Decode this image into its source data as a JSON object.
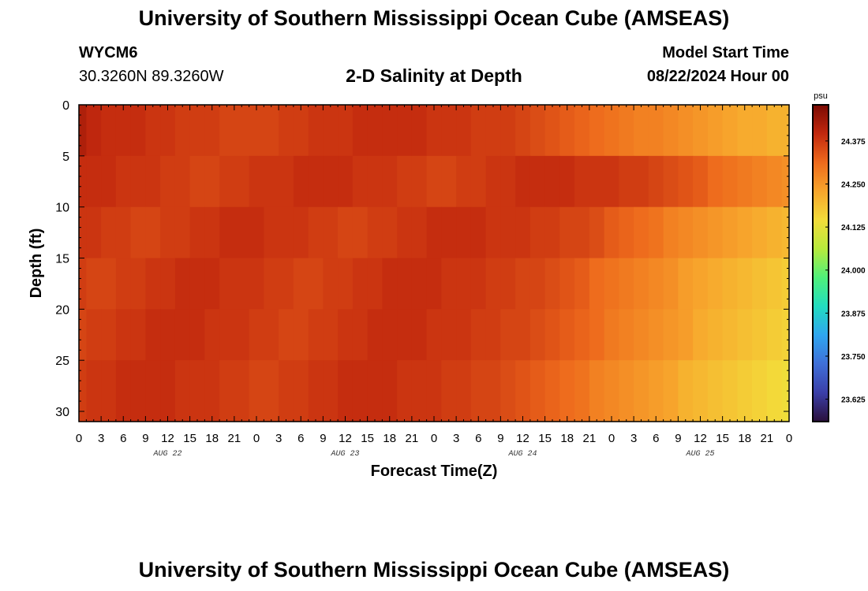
{
  "header": {
    "title": "University of Southern Mississippi Ocean Cube (AMSEAS)",
    "station_id": "WYCM6",
    "station_coords": "30.3260N  89.3260W",
    "subtitle": "2-D Salinity at Depth",
    "model_start_label": "Model Start Time",
    "model_start_value": "08/22/2024 Hour 00"
  },
  "footer": {
    "title": "University of Southern Mississippi Ocean Cube (AMSEAS)"
  },
  "chart_data": {
    "type": "heatmap",
    "title": "2-D Salinity at Depth",
    "xlabel": "Forecast Time(Z)",
    "ylabel": "Depth (ft)",
    "x_unit": "hours since 08/22/2024 00Z",
    "xlim": [
      0,
      96
    ],
    "ylim": [
      0,
      31
    ],
    "x_ticks": [
      0,
      3,
      6,
      9,
      12,
      15,
      18,
      21,
      24,
      27,
      30,
      33,
      36,
      39,
      42,
      45,
      48,
      51,
      54,
      57,
      60,
      63,
      66,
      69,
      72,
      75,
      78,
      81,
      84,
      87,
      90,
      93,
      96
    ],
    "x_tick_labels": [
      "0",
      "3",
      "6",
      "9",
      "12",
      "15",
      "18",
      "21",
      "0",
      "3",
      "6",
      "9",
      "12",
      "15",
      "18",
      "21",
      "0",
      "3",
      "6",
      "9",
      "12",
      "15",
      "18",
      "21",
      "0",
      "3",
      "6",
      "9",
      "12",
      "15",
      "18",
      "21",
      "0"
    ],
    "y_ticks": [
      0,
      5,
      10,
      15,
      20,
      25,
      30
    ],
    "y_tick_labels": [
      "0",
      "5",
      "10",
      "15",
      "20",
      "25",
      "30"
    ],
    "date_labels": [
      {
        "label": "AUG 22",
        "hour": 12
      },
      {
        "label": "AUG 23",
        "hour": 36
      },
      {
        "label": "AUG 24",
        "hour": 60
      },
      {
        "label": "AUG 25",
        "hour": 84
      }
    ],
    "colorbar": {
      "unit": "psu",
      "vmin": 23.56,
      "vmax": 24.48,
      "ticks": [
        24.375,
        24.25,
        24.125,
        24.0,
        23.875,
        23.75,
        23.625
      ],
      "tick_labels": [
        "24.375",
        "24.250",
        "24.125",
        "24.000",
        "23.875",
        "23.750",
        "23.625"
      ],
      "colors": [
        "#2a0f3a",
        "#3b3fa8",
        "#3f6fd8",
        "#2fa6f0",
        "#22dcc0",
        "#4ff07a",
        "#b7ea3c",
        "#f3dc3a",
        "#f7a52c",
        "#ee6a1c",
        "#c2280e",
        "#7a0a03"
      ]
    },
    "grid": {
      "hours": [
        0,
        2,
        4,
        6,
        8,
        10,
        12,
        14,
        16,
        18,
        20,
        22,
        24,
        26,
        28,
        30,
        32,
        34,
        36,
        38,
        40,
        42,
        44,
        46,
        48,
        50,
        52,
        54,
        56,
        58,
        60,
        62,
        64,
        66,
        68,
        70,
        72,
        74,
        76,
        78,
        80,
        82,
        84,
        86,
        88,
        90,
        92,
        94,
        96
      ],
      "depth_bins_ft": [
        [
          0,
          5
        ],
        [
          5,
          10
        ],
        [
          10,
          15
        ],
        [
          15,
          20
        ],
        [
          20,
          25
        ],
        [
          25,
          31
        ]
      ],
      "values": [
        [
          24.42,
          24.4,
          24.39,
          24.39,
          24.39,
          24.38,
          24.38,
          24.37,
          24.37,
          24.37,
          24.36,
          24.36,
          24.36,
          24.36,
          24.37,
          24.37,
          24.38,
          24.38,
          24.38,
          24.39,
          24.39,
          24.39,
          24.39,
          24.39,
          24.38,
          24.38,
          24.38,
          24.37,
          24.37,
          24.37,
          24.36,
          24.35,
          24.34,
          24.33,
          24.32,
          24.31,
          24.3,
          24.29,
          24.28,
          24.28,
          24.27,
          24.26,
          24.25,
          24.24,
          24.23,
          24.22,
          24.22,
          24.21,
          24.21
        ],
        [
          24.39,
          24.39,
          24.39,
          24.38,
          24.38,
          24.38,
          24.37,
          24.37,
          24.36,
          24.36,
          24.37,
          24.37,
          24.38,
          24.38,
          24.38,
          24.39,
          24.39,
          24.39,
          24.39,
          24.38,
          24.38,
          24.38,
          24.37,
          24.37,
          24.36,
          24.36,
          24.37,
          24.37,
          24.38,
          24.38,
          24.39,
          24.39,
          24.39,
          24.39,
          24.38,
          24.38,
          24.38,
          24.37,
          24.37,
          24.36,
          24.35,
          24.34,
          24.33,
          24.31,
          24.3,
          24.29,
          24.28,
          24.27,
          24.26
        ],
        [
          24.38,
          24.38,
          24.37,
          24.37,
          24.36,
          24.36,
          24.37,
          24.37,
          24.38,
          24.38,
          24.39,
          24.39,
          24.39,
          24.38,
          24.38,
          24.38,
          24.37,
          24.37,
          24.36,
          24.36,
          24.37,
          24.37,
          24.38,
          24.38,
          24.39,
          24.39,
          24.39,
          24.39,
          24.38,
          24.38,
          24.38,
          24.37,
          24.37,
          24.36,
          24.36,
          24.35,
          24.33,
          24.32,
          24.31,
          24.3,
          24.28,
          24.27,
          24.26,
          24.25,
          24.24,
          24.23,
          24.22,
          24.21,
          24.2
        ],
        [
          24.37,
          24.36,
          24.36,
          24.37,
          24.37,
          24.38,
          24.38,
          24.39,
          24.39,
          24.39,
          24.38,
          24.38,
          24.38,
          24.37,
          24.37,
          24.36,
          24.36,
          24.37,
          24.37,
          24.38,
          24.38,
          24.39,
          24.39,
          24.39,
          24.39,
          24.38,
          24.38,
          24.38,
          24.37,
          24.37,
          24.36,
          24.36,
          24.35,
          24.34,
          24.33,
          24.31,
          24.3,
          24.29,
          24.28,
          24.27,
          24.26,
          24.24,
          24.23,
          24.22,
          24.21,
          24.2,
          24.19,
          24.18,
          24.17
        ],
        [
          24.36,
          24.37,
          24.37,
          24.38,
          24.38,
          24.39,
          24.39,
          24.39,
          24.39,
          24.38,
          24.38,
          24.38,
          24.37,
          24.37,
          24.36,
          24.36,
          24.37,
          24.37,
          24.38,
          24.38,
          24.39,
          24.39,
          24.39,
          24.39,
          24.38,
          24.38,
          24.38,
          24.37,
          24.37,
          24.36,
          24.36,
          24.35,
          24.34,
          24.33,
          24.32,
          24.31,
          24.29,
          24.28,
          24.27,
          24.26,
          24.25,
          24.24,
          24.22,
          24.21,
          24.2,
          24.19,
          24.18,
          24.17,
          24.16
        ],
        [
          24.37,
          24.38,
          24.38,
          24.39,
          24.39,
          24.39,
          24.39,
          24.38,
          24.38,
          24.38,
          24.37,
          24.37,
          24.36,
          24.36,
          24.37,
          24.37,
          24.38,
          24.38,
          24.39,
          24.39,
          24.39,
          24.39,
          24.38,
          24.38,
          24.38,
          24.37,
          24.37,
          24.36,
          24.36,
          24.35,
          24.34,
          24.33,
          24.32,
          24.31,
          24.3,
          24.28,
          24.27,
          24.26,
          24.25,
          24.24,
          24.23,
          24.21,
          24.2,
          24.19,
          24.18,
          24.17,
          24.16,
          24.15,
          24.14
        ]
      ]
    }
  }
}
